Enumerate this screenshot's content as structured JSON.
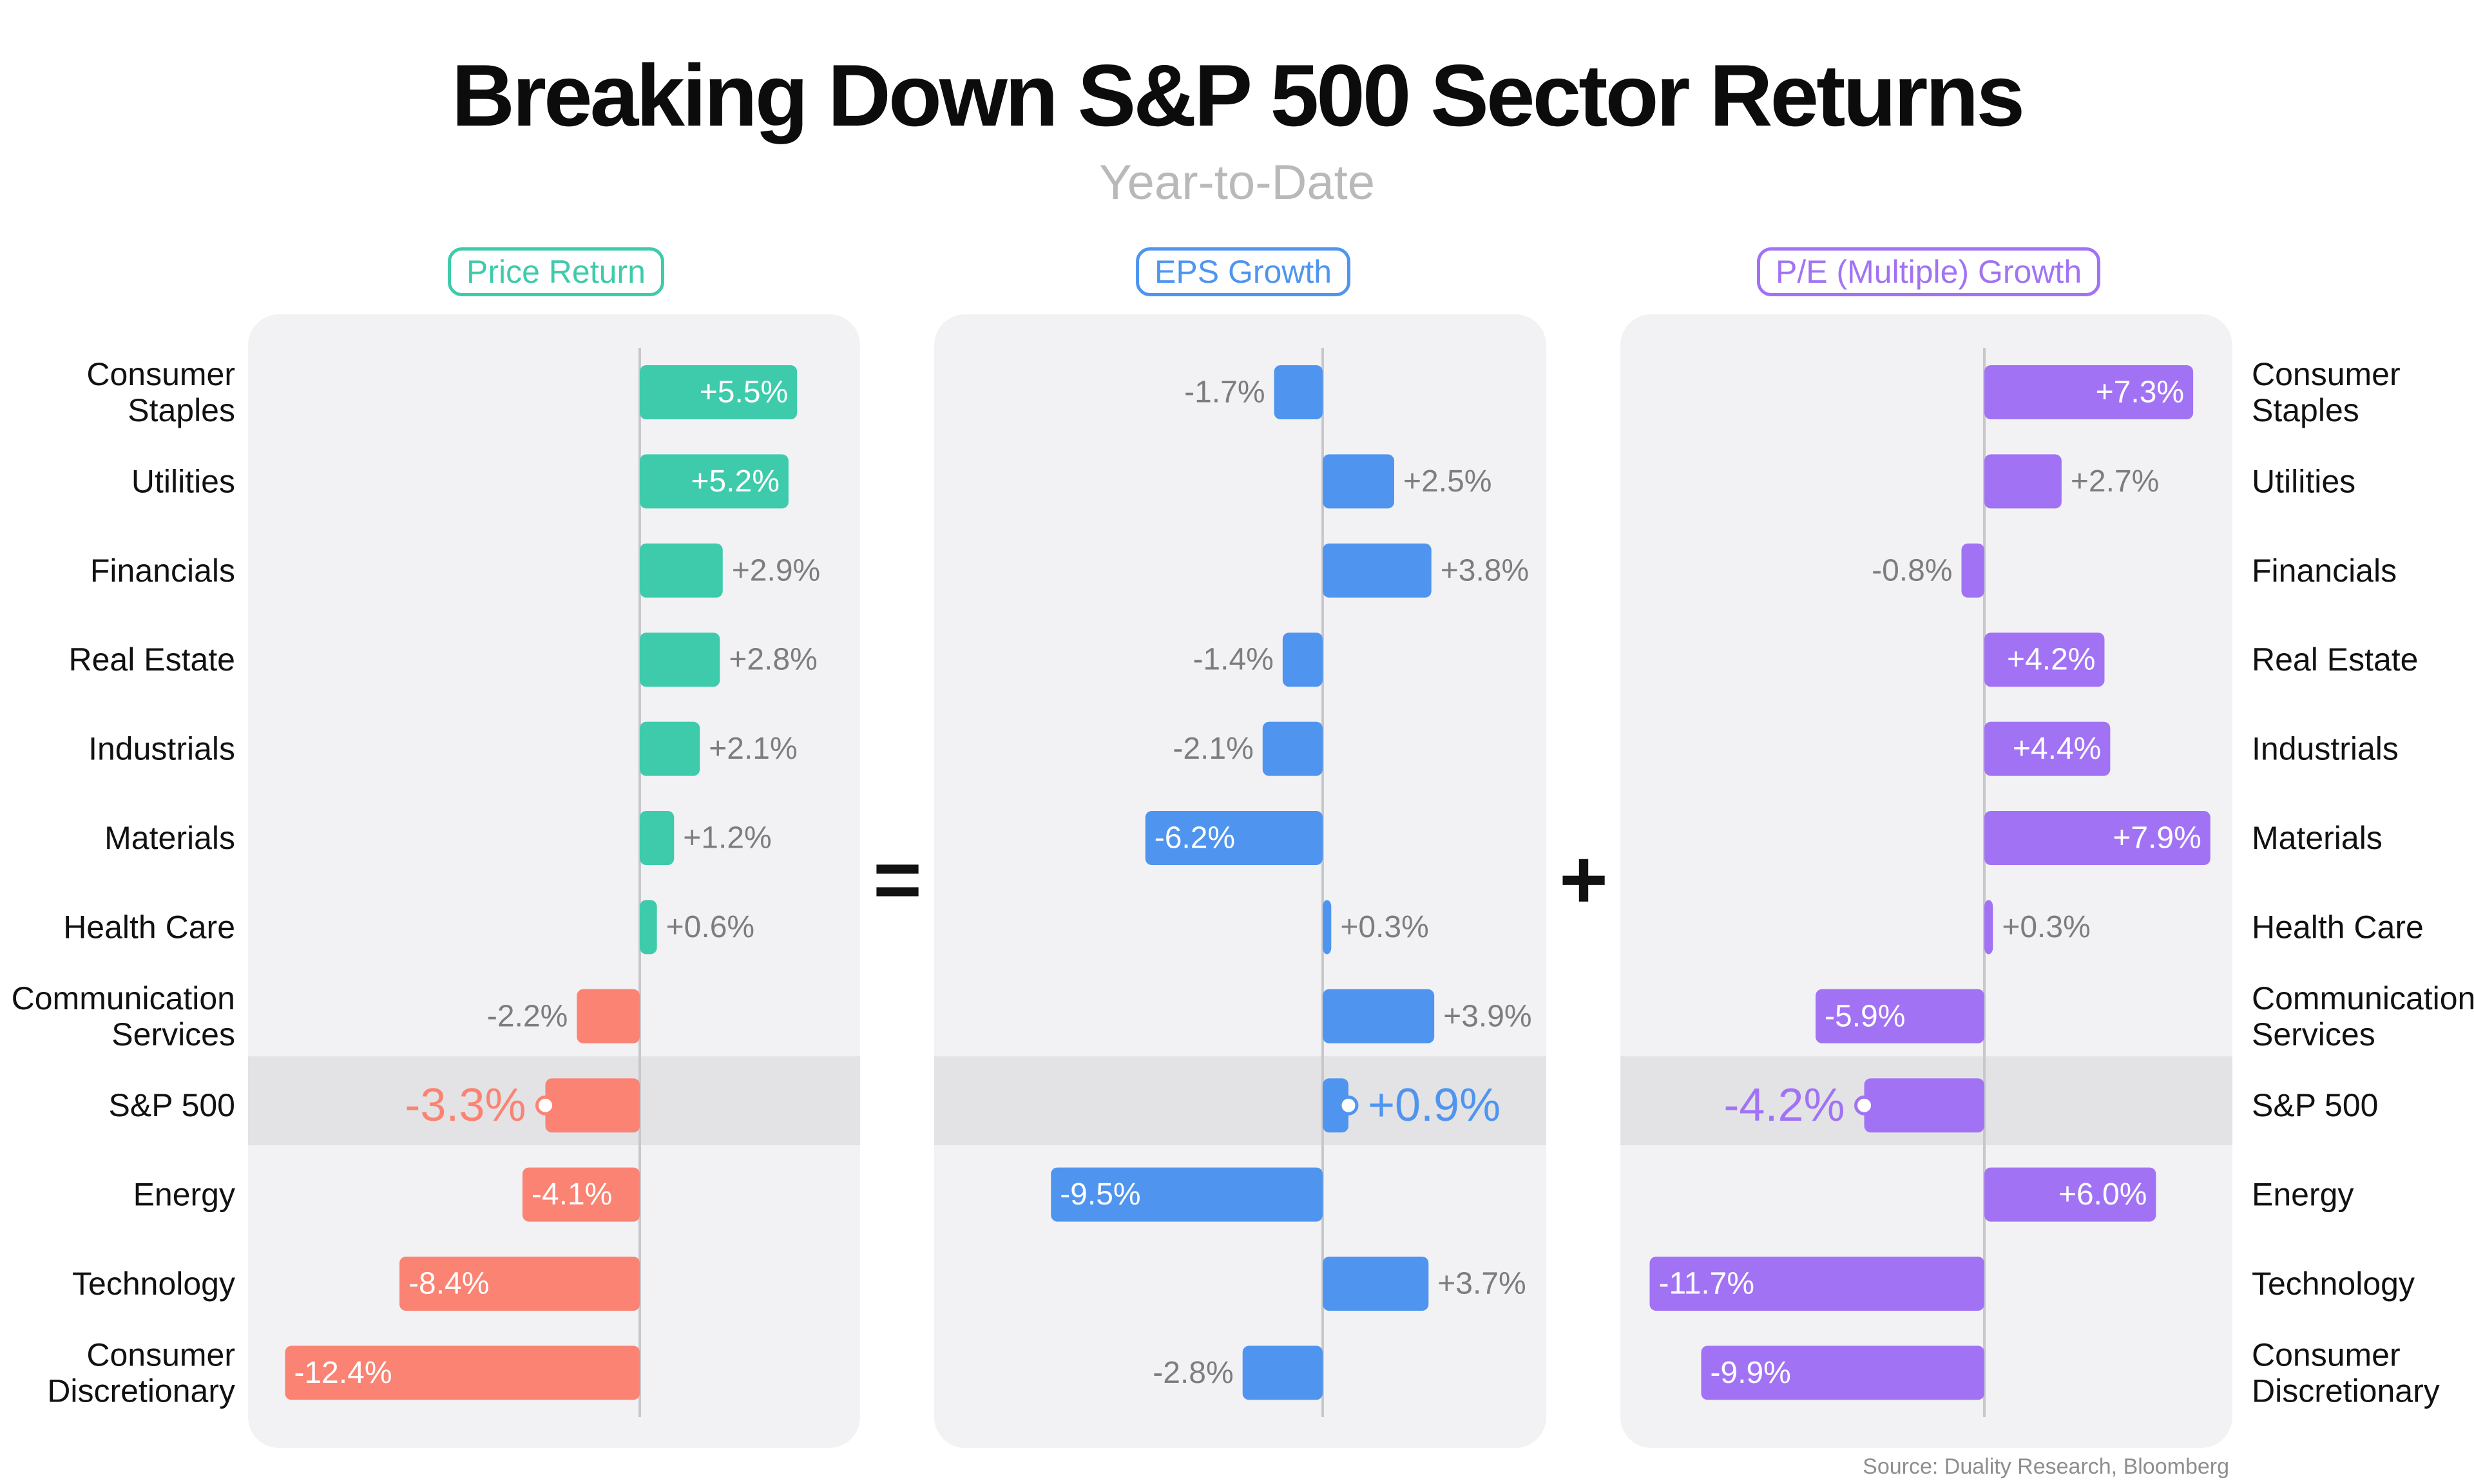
{
  "title": "Breaking Down S&P 500 Sector Returns",
  "subtitle": "Year-to-Date",
  "operators": {
    "equals": "=",
    "plus": "+"
  },
  "source": "Source: Duality Research, Bloomberg",
  "colors": {
    "price_pos": "#3ecbab",
    "price_neg": "#fa8373",
    "eps": "#4f95f0",
    "pe": "#a173f4",
    "value_outside": "#7d7d7d",
    "panel_bg": "#f2f2f5",
    "highlight": "#e3e3e6"
  },
  "chart_data": {
    "type": "bar",
    "orientation": "horizontal",
    "categories": [
      "Consumer Staples",
      "Utilities",
      "Financials",
      "Real Estate",
      "Industrials",
      "Materials",
      "Health Care",
      "Communication Services",
      "S&P 500",
      "Energy",
      "Technology",
      "Consumer Discretionary"
    ],
    "category_lines": [
      [
        "Consumer",
        "Staples"
      ],
      [
        "Utilities"
      ],
      [
        "Financials"
      ],
      [
        "Real Estate"
      ],
      [
        "Industrials"
      ],
      [
        "Materials"
      ],
      [
        "Health Care"
      ],
      [
        "Communication",
        "Services"
      ],
      [
        "S&P 500"
      ],
      [
        "Energy"
      ],
      [
        "Technology"
      ],
      [
        "Consumer",
        "Discretionary"
      ]
    ],
    "highlight_category": "S&P 500",
    "series": [
      {
        "name": "Price Return",
        "values": [
          5.5,
          5.2,
          2.9,
          2.8,
          2.1,
          1.2,
          0.6,
          -2.2,
          -3.3,
          -4.1,
          -8.4,
          -12.4
        ],
        "labels": [
          "+5.5%",
          "+5.2%",
          "+2.9%",
          "+2.8%",
          "+2.1%",
          "+1.2%",
          "+0.6%",
          "-2.2%",
          "-3.3%",
          "-4.1%",
          "-8.4%",
          "-12.4%"
        ]
      },
      {
        "name": "EPS Growth",
        "values": [
          -1.7,
          2.5,
          3.8,
          -1.4,
          -2.1,
          -6.2,
          0.3,
          3.9,
          0.9,
          -9.5,
          3.7,
          -2.8
        ],
        "labels": [
          "-1.7%",
          "+2.5%",
          "+3.8%",
          "-1.4%",
          "-2.1%",
          "-6.2%",
          "+0.3%",
          "+3.9%",
          "+0.9%",
          "-9.5%",
          "+3.7%",
          "-2.8%"
        ]
      },
      {
        "name": "P/E (Multiple) Growth",
        "values": [
          7.3,
          2.7,
          -0.8,
          4.2,
          4.4,
          7.9,
          0.3,
          -5.9,
          -4.2,
          6.0,
          -11.7,
          -9.9
        ],
        "labels": [
          "+7.3%",
          "+2.7%",
          "-0.8%",
          "+4.2%",
          "+4.4%",
          "+7.9%",
          "+0.3%",
          "-5.9%",
          "-4.2%",
          "+6.0%",
          "-11.7%",
          "-9.9%"
        ]
      }
    ]
  }
}
